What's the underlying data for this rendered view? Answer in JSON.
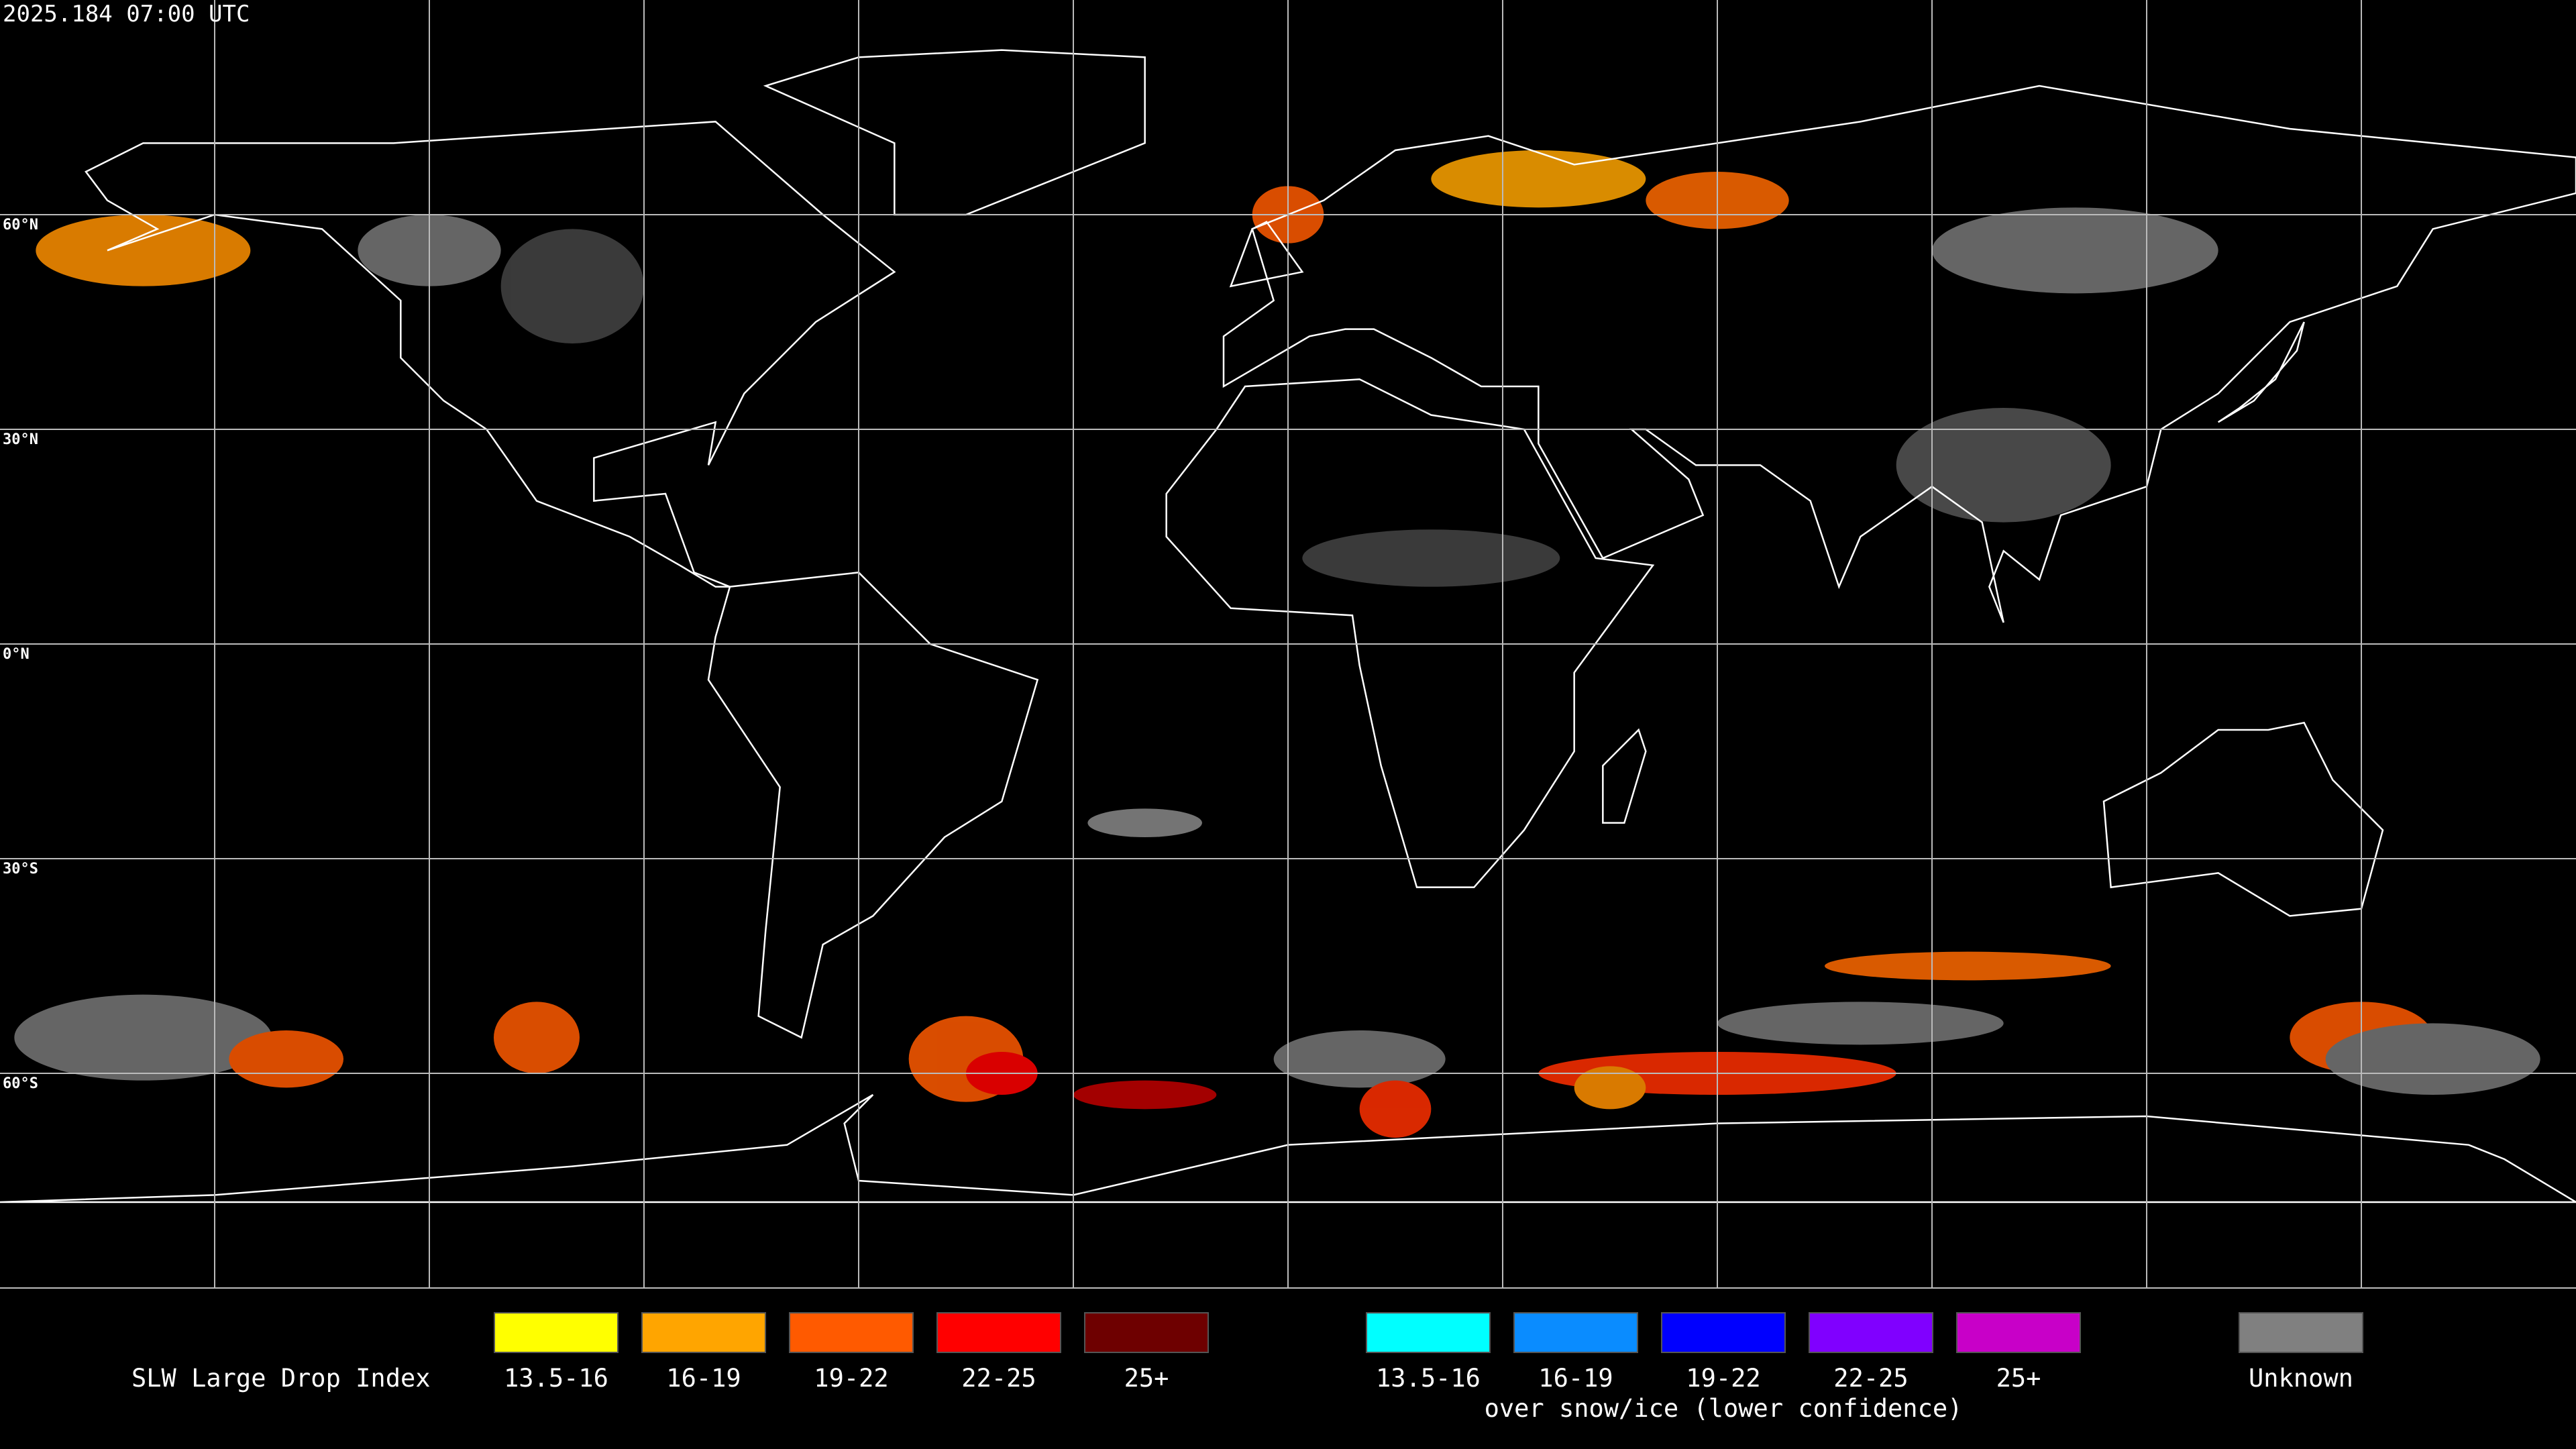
{
  "timestamp": "2025.184 07:00 UTC",
  "lat_labels": [
    "60°N",
    "30°N",
    "0°N",
    "30°S",
    "60°S"
  ],
  "legend": {
    "title": "SLW Large Drop Index",
    "groups": [
      {
        "items": [
          {
            "label": "13.5-16",
            "color": "#ffff00"
          },
          {
            "label": "16-19",
            "color": "#ffa500"
          },
          {
            "label": "19-22",
            "color": "#ff5a00"
          },
          {
            "label": "22-25",
            "color": "#ff0000"
          },
          {
            "label": "25+",
            "color": "#6e0000"
          }
        ]
      },
      {
        "items": [
          {
            "label": "13.5-16",
            "color": "#00ffff"
          },
          {
            "label": "16-19",
            "color": "#0a8cff"
          },
          {
            "label": "19-22",
            "color": "#0000ff"
          },
          {
            "label": "22-25",
            "color": "#8000ff"
          },
          {
            "label": "25+",
            "color": "#c800c8"
          }
        ],
        "note": "over snow/ice (lower confidence)"
      },
      {
        "items": [
          {
            "label": "Unknown",
            "color": "#808080"
          }
        ]
      }
    ]
  }
}
